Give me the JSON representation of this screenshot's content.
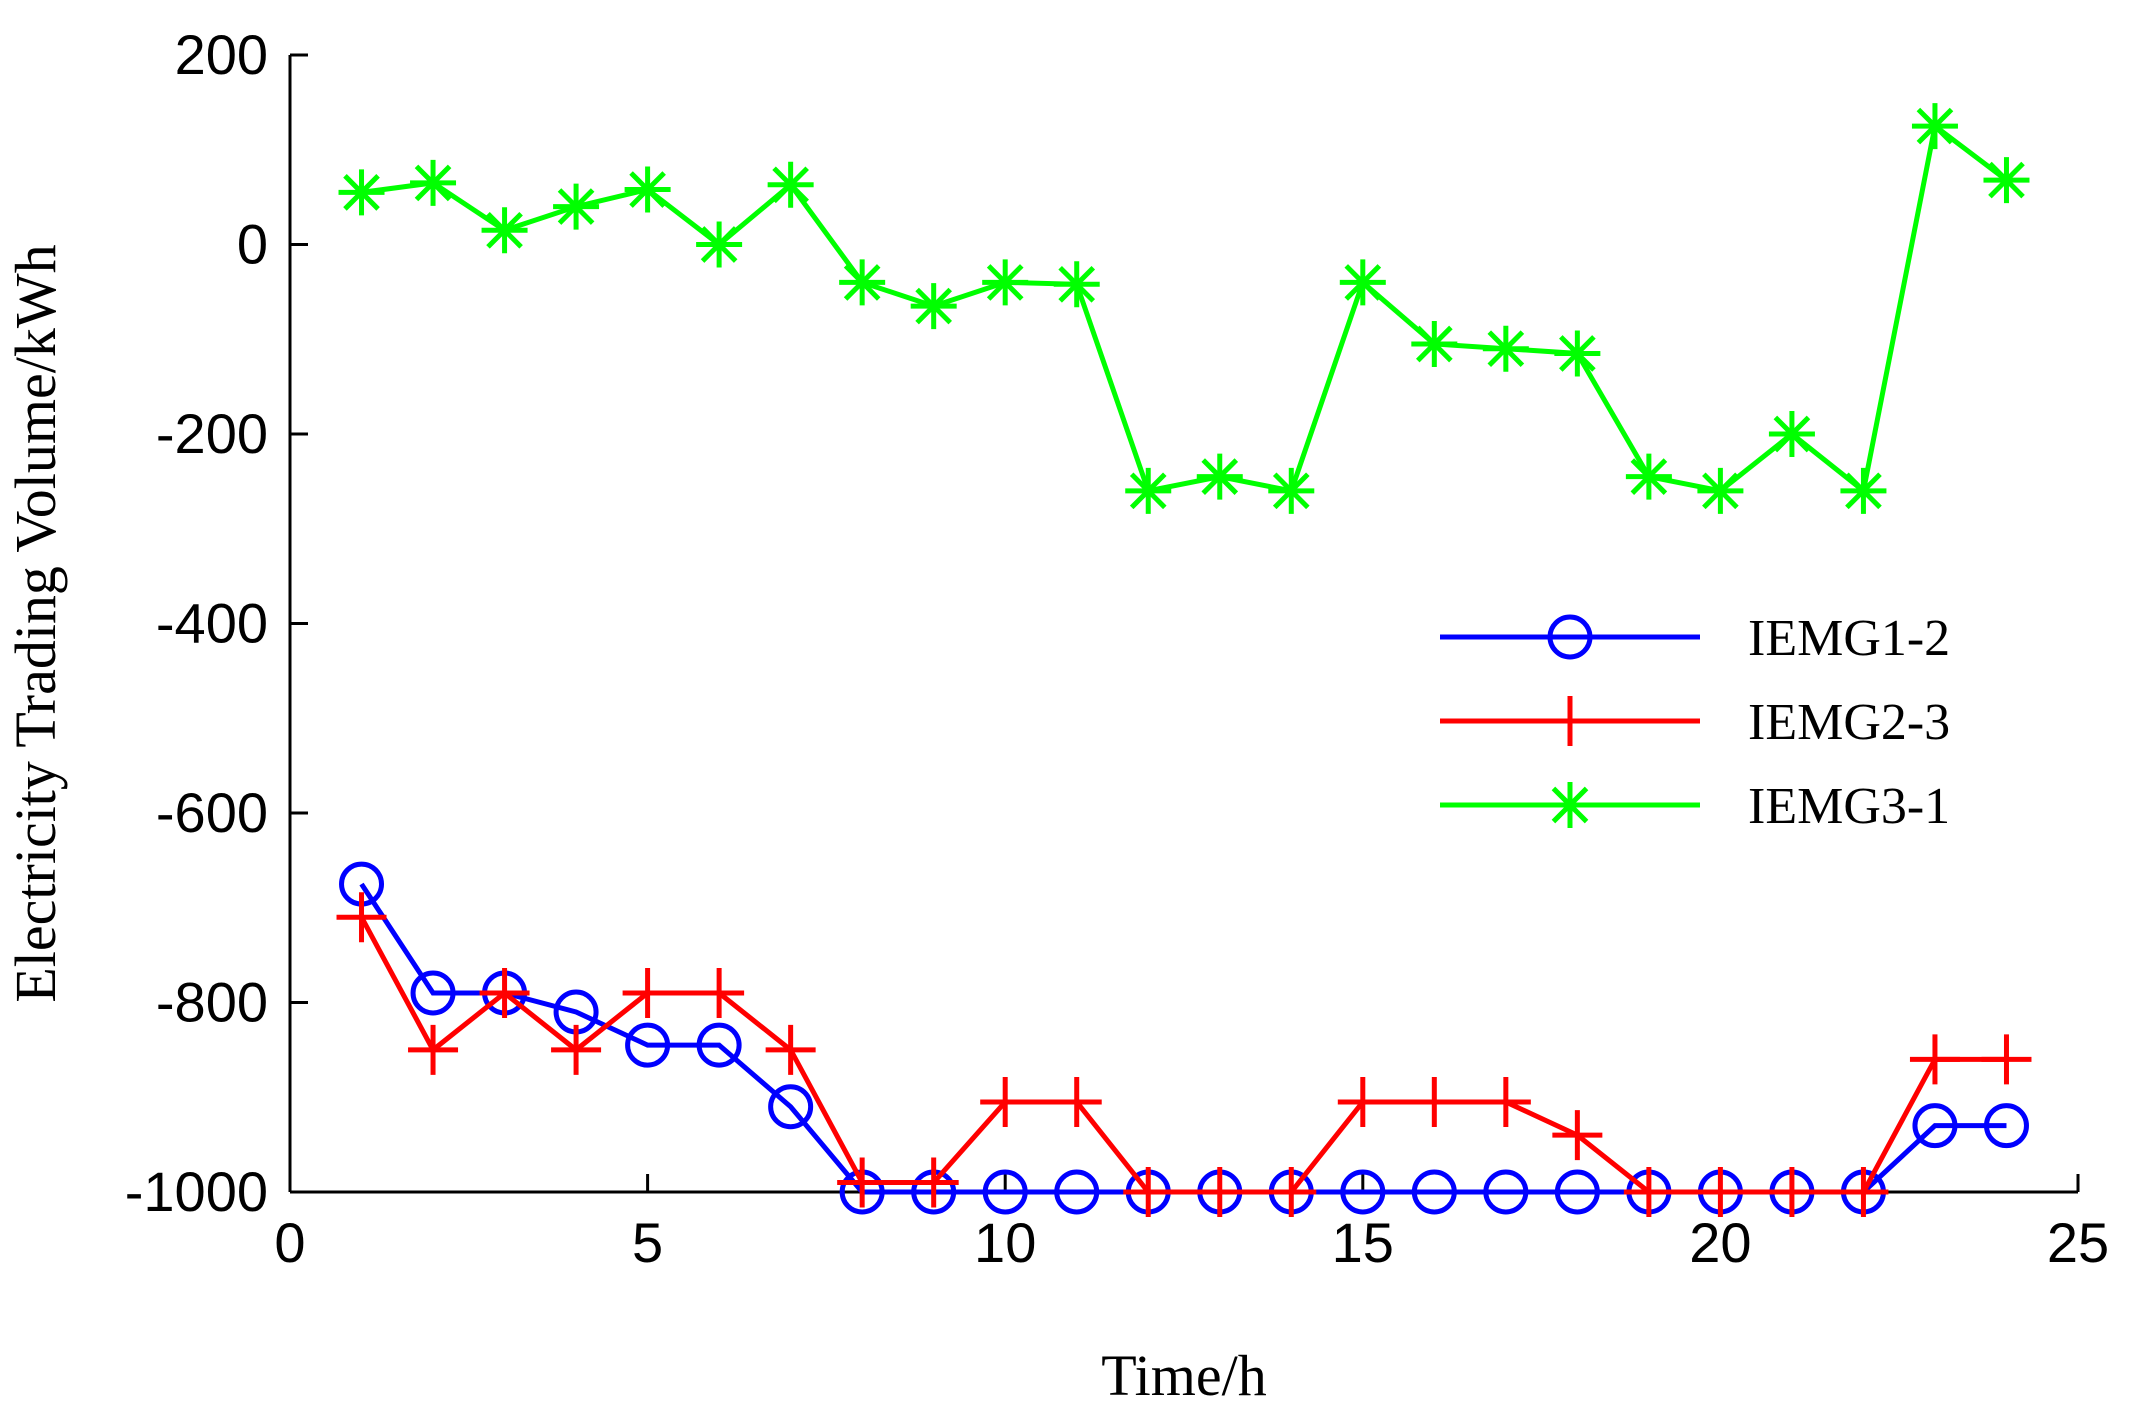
{
  "chart_data": {
    "type": "line",
    "title": "",
    "xlabel": "Time/h",
    "ylabel": "Electricity Trading Volume/kWh",
    "xlim": [
      0,
      25
    ],
    "ylim": [
      -1000,
      200
    ],
    "xticks": [
      0,
      5,
      10,
      15,
      20,
      25
    ],
    "xtick_labels": [
      "0",
      "5",
      "10",
      "15",
      "20",
      "25"
    ],
    "yticks": [
      200,
      0,
      -200,
      -400,
      -600,
      -800,
      -1000
    ],
    "ytick_labels": [
      "200",
      "0",
      "-200",
      "-400",
      "-600",
      "-800",
      "-1000"
    ],
    "grid": false,
    "legend_position": "middle-right",
    "x": [
      1,
      2,
      3,
      4,
      5,
      6,
      7,
      8,
      9,
      10,
      11,
      12,
      13,
      14,
      15,
      16,
      17,
      18,
      19,
      20,
      21,
      22,
      23,
      24
    ],
    "series": [
      {
        "name": "IEMG1-2",
        "color": "#0000ff",
        "marker": "circle",
        "values": [
          -675,
          -790,
          -790,
          -810,
          -845,
          -845,
          -910,
          -1000,
          -1000,
          -1000,
          -1000,
          -1000,
          -1000,
          -1000,
          -1000,
          -1000,
          -1000,
          -1000,
          -1000,
          -1000,
          -1000,
          -1000,
          -930,
          -930
        ]
      },
      {
        "name": "IEMG2-3",
        "color": "#ff0000",
        "marker": "plus",
        "values": [
          -710,
          -850,
          -790,
          -850,
          -790,
          -790,
          -850,
          -990,
          -990,
          -905,
          -905,
          -1000,
          -1000,
          -1000,
          -905,
          -905,
          -905,
          -940,
          -1000,
          -1000,
          -1000,
          -1000,
          -860,
          -860
        ]
      },
      {
        "name": "IEMG3-1",
        "color": "#00ff00",
        "marker": "asterisk",
        "values": [
          55,
          65,
          15,
          40,
          58,
          0,
          63,
          -40,
          -65,
          -40,
          -42,
          -260,
          -245,
          -260,
          -40,
          -105,
          -110,
          -115,
          -245,
          -260,
          -200,
          -260,
          125,
          68
        ]
      }
    ]
  }
}
